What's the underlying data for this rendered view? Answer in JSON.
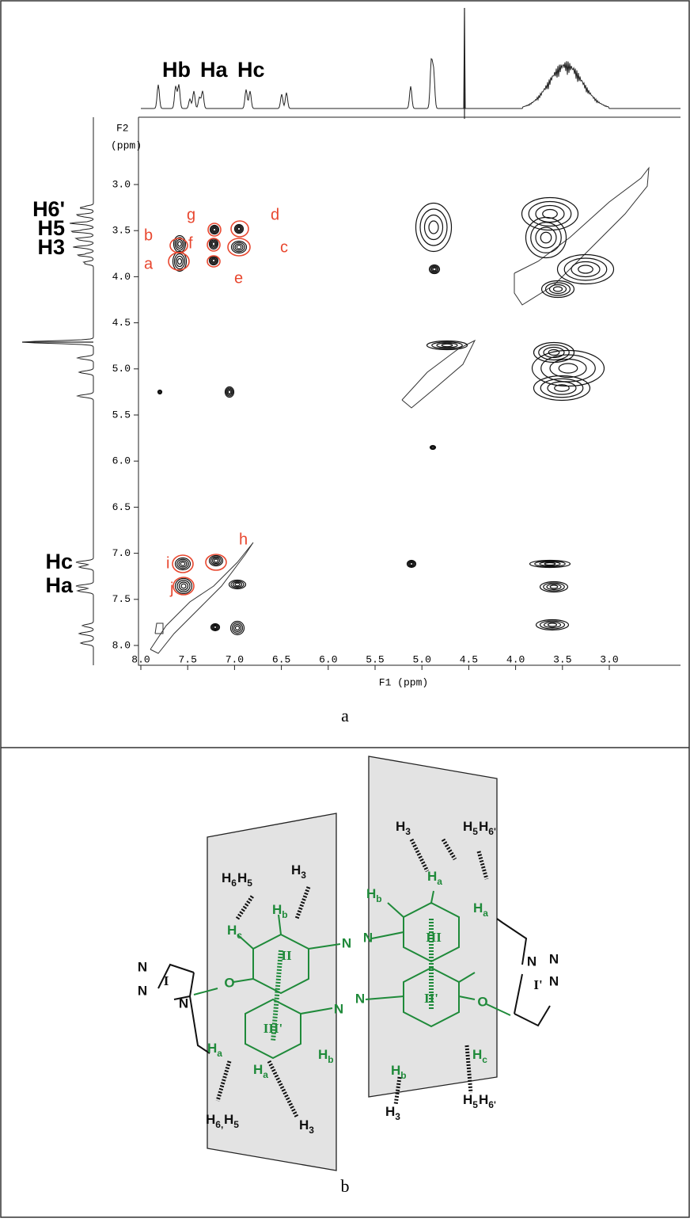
{
  "panel_a": {
    "top_labels": [
      "Hb",
      "Ha",
      "Hc"
    ],
    "left_labels": [
      "H6'",
      "H5",
      "H3",
      "Hc",
      "Ha"
    ],
    "f2_label": "F2",
    "f2_unit": "(ppm)",
    "x_label": "F1 (ppm)",
    "xticks": [
      {
        "value": 8,
        "label": "8.0"
      },
      {
        "value": 7.5,
        "label": "7.5"
      },
      {
        "value": 7,
        "label": "7.0"
      },
      {
        "value": 6.5,
        "label": "6.5"
      },
      {
        "value": 6,
        "label": "6.0"
      },
      {
        "value": 5.5,
        "label": "5.5"
      },
      {
        "value": 5,
        "label": "5.0"
      },
      {
        "value": 4.5,
        "label": "4.5"
      },
      {
        "value": 4,
        "label": "4.0"
      },
      {
        "value": 3.5,
        "label": "3.5"
      },
      {
        "value": 3,
        "label": "3.0"
      }
    ],
    "yticks": [
      {
        "value": 3,
        "label": "3.0"
      },
      {
        "value": 3.5,
        "label": "3.5"
      },
      {
        "value": 4,
        "label": "4.0"
      },
      {
        "value": 4.5,
        "label": "4.5"
      },
      {
        "value": 5,
        "label": "5.0"
      },
      {
        "value": 5.5,
        "label": "5.5"
      },
      {
        "value": 6,
        "label": "6.0"
      },
      {
        "value": 6.5,
        "label": "6.5"
      },
      {
        "value": 7,
        "label": "7.0"
      },
      {
        "value": 7.5,
        "label": "7.5"
      },
      {
        "value": 8,
        "label": "8.0"
      }
    ],
    "peak_labels": [
      "a",
      "b",
      "c",
      "d",
      "e",
      "f",
      "g",
      "h",
      "i",
      "j"
    ],
    "caption": "a"
  },
  "panel_b": {
    "labels": [
      {
        "text": "H",
        "sub": "6"
      },
      {
        "text": "H",
        "sub": "5"
      },
      {
        "text": "H",
        "sub": "3"
      },
      {
        "text": "H",
        "sub": "b"
      },
      {
        "text": "H",
        "sub": "c"
      },
      {
        "text": "H",
        "sub": "a"
      },
      {
        "text": "H",
        "sub": "a"
      },
      {
        "text": "H",
        "sub": "b"
      },
      {
        "text": "H",
        "sub": "6,"
      },
      {
        "text": "H",
        "sub": "5"
      },
      {
        "text": "H",
        "sub": "3"
      },
      {
        "text": "H",
        "sub": "3"
      },
      {
        "text": "H",
        "sub": "5"
      },
      {
        "text": "H",
        "sub": "6'"
      },
      {
        "text": "H",
        "sub": "a"
      },
      {
        "text": "H",
        "sub": "b"
      },
      {
        "text": "H",
        "sub": "a"
      },
      {
        "text": "H",
        "sub": "c"
      },
      {
        "text": "H",
        "sub": "b"
      },
      {
        "text": "H",
        "sub": "3"
      },
      {
        "text": "H",
        "sub": "5"
      },
      {
        "text": "H",
        "sub": "6'"
      }
    ],
    "atoms": [
      "N",
      "N",
      "N",
      "N",
      "O",
      "O",
      "N",
      "N",
      "N",
      "N",
      "N",
      "N"
    ],
    "rings": [
      "I",
      "II",
      "III'",
      "III",
      "II'",
      "I'"
    ],
    "caption": "b"
  }
}
